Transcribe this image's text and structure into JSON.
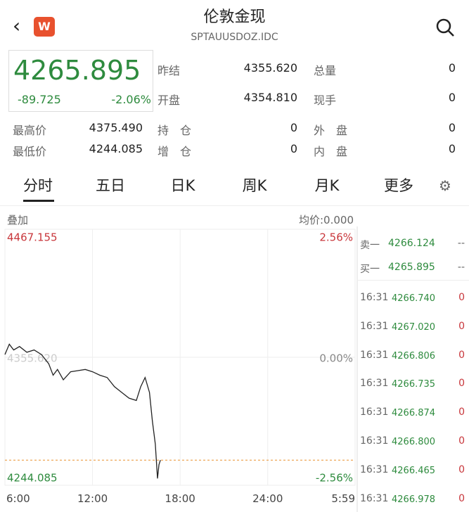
{
  "header": {
    "title": "伦敦金现",
    "subtitle": "SPTAUUSDOZ.IDC"
  },
  "quote": {
    "price": "4265.895",
    "change": "-89.725",
    "change_pct": "-2.06%"
  },
  "stats": [
    [
      [
        "昨结",
        "4355.620"
      ],
      [
        "总量",
        "0"
      ]
    ],
    [
      [
        "开盘",
        "4354.810"
      ],
      [
        "现手",
        "0"
      ]
    ]
  ],
  "stats2": [
    [
      [
        "最高价",
        "4375.490"
      ],
      [
        "持　仓",
        "0"
      ],
      [
        "外　盘",
        "0"
      ]
    ],
    [
      [
        "最低价",
        "4244.085"
      ],
      [
        "增　仓",
        "0"
      ],
      [
        "内　盘",
        "0"
      ]
    ]
  ],
  "tabs": [
    "分时",
    "五日",
    "日K",
    "周K",
    "月K",
    "更多"
  ],
  "chart_data": {
    "type": "line",
    "overlay": "叠加",
    "avg_price": "均价:0.000",
    "x": [
      6,
      6.3,
      6.6,
      7,
      7.5,
      8,
      8.5,
      9,
      9.3,
      9.6,
      10,
      10.5,
      11,
      11.5,
      12,
      12.5,
      13,
      13.5,
      14,
      14.5,
      15,
      15.3,
      15.6,
      15.9,
      16.1,
      16.3,
      16.45,
      16.55,
      16.65
    ],
    "series": [
      {
        "name": "伦敦金现",
        "color": "#222222",
        "values": [
          4358,
          4367,
          4362,
          4365,
          4360,
          4362,
          4358,
          4350,
          4340,
          4345,
          4336,
          4343,
          4344,
          4345,
          4343,
          4340,
          4338,
          4330,
          4325,
          4320,
          4318,
          4330,
          4338,
          4325,
          4300,
          4280,
          4250,
          4262,
          4266
        ]
      }
    ],
    "xlim": [
      6,
      29.983
    ],
    "xticks": [
      {
        "value": 6,
        "label": "6:00"
      },
      {
        "value": 12,
        "label": "12:00"
      },
      {
        "value": 18,
        "label": "18:00"
      },
      {
        "value": 24,
        "label": "24:00"
      },
      {
        "value": 29.983,
        "label": "5:59"
      }
    ],
    "ylim": [
      4244.085,
      4467.155
    ],
    "yticks": [
      4244.085,
      {
        "value": 4355.62,
        "label": "4355.620"
      },
      4467.155
    ],
    "y2lim": [
      -2.56,
      2.56
    ],
    "y2ticks": [
      {
        "value": -2.56,
        "label": "-2.56%"
      },
      {
        "value": 0,
        "label": "0.00%"
      },
      {
        "value": 2.56,
        "label": "2.56%"
      }
    ]
  },
  "order_book": [
    [
      "卖一",
      "4266.124",
      "--"
    ],
    [
      "买一",
      "4265.895",
      "--"
    ]
  ],
  "trades": [
    [
      "16:31",
      "4266.740",
      "0"
    ],
    [
      "16:31",
      "4267.020",
      "0"
    ],
    [
      "16:31",
      "4266.806",
      "0"
    ],
    [
      "16:31",
      "4266.735",
      "0"
    ],
    [
      "16:31",
      "4266.874",
      "0"
    ],
    [
      "16:31",
      "4266.800",
      "0"
    ],
    [
      "16:31",
      "4266.465",
      "0"
    ],
    [
      "16:31",
      "4266.978",
      "0"
    ]
  ]
}
